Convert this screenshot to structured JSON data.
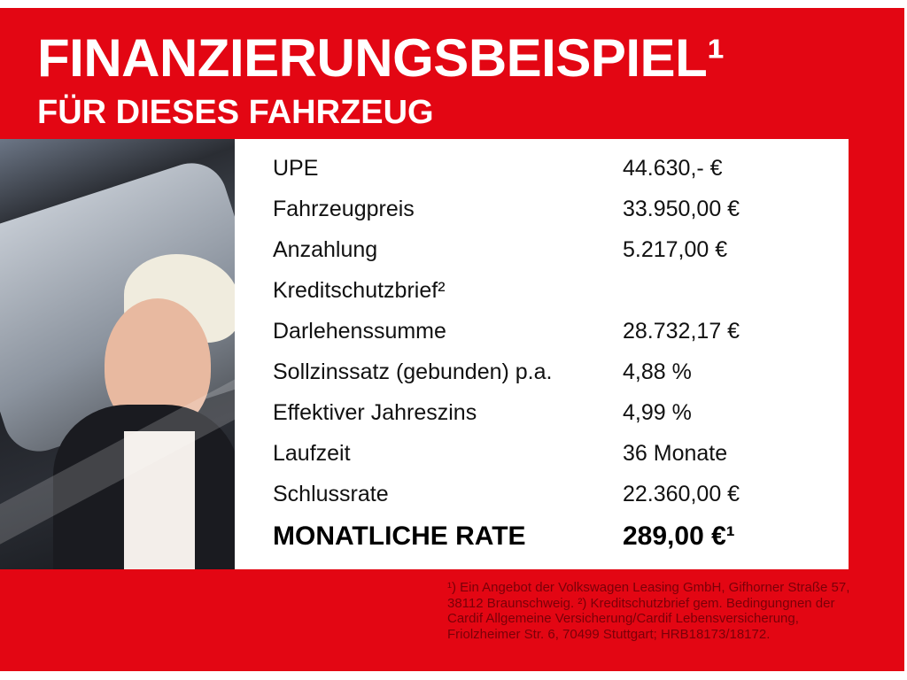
{
  "header": {
    "title": "FINANZIERUNGSBEISPIEL¹",
    "subtitle": "FÜR DIESES FAHRZEUG"
  },
  "colors": {
    "brand_red": "#e30613",
    "footnote_text": "#7a0008"
  },
  "table": {
    "rows": [
      {
        "label": "UPE",
        "value": "44.630,- €"
      },
      {
        "label": "Fahrzeugpreis",
        "value": "33.950,00 €"
      },
      {
        "label": "Anzahlung",
        "value": "5.217,00 €"
      },
      {
        "label": "Kreditschutzbrief²",
        "value": ""
      },
      {
        "label": "Darlehenssumme",
        "value": "28.732,17 €"
      },
      {
        "label": "Sollzinssatz (gebunden) p.a.",
        "value": "4,88 %"
      },
      {
        "label": "Effektiver Jahreszins",
        "value": "4,99 %"
      },
      {
        "label": "Laufzeit",
        "value": "36 Monate"
      },
      {
        "label": "Schlussrate",
        "value": "22.360,00 €"
      }
    ],
    "total": {
      "label": "MONATLICHE RATE",
      "value": "289,00 €¹"
    }
  },
  "footnote": "¹) Ein Angebot der Volkswagen Leasing GmbH, Gifhorner Straße 57, 38112 Braunschweig. ²) Kreditschutzbrief gem. Bedingungnen der Cardif Allgemeine Versicherung/Cardif Lebensversicherung, Friolzheimer Str. 6, 70499 Stuttgart; HRB18173/18172."
}
